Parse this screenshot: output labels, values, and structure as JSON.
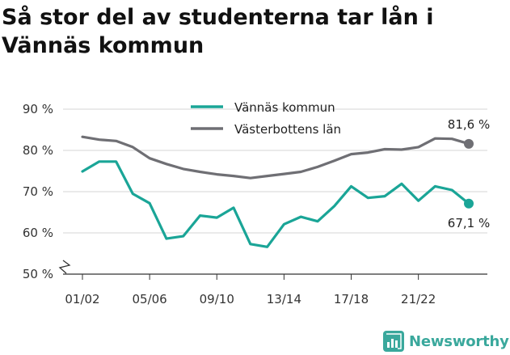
{
  "chart_data": {
    "type": "line",
    "title": "Så stor del av studenterna tar lån i Vännäs kommun",
    "xlabel": "",
    "ylabel": "",
    "ylim": [
      50,
      90
    ],
    "yticks": [
      50,
      60,
      70,
      80,
      90
    ],
    "ytick_labels": [
      "50 %",
      "60 %",
      "70 %",
      "80 %",
      "90 %"
    ],
    "y_axis_break": true,
    "x": [
      "01/02",
      "02/03",
      "03/04",
      "04/05",
      "05/06",
      "06/07",
      "07/08",
      "08/09",
      "09/10",
      "10/11",
      "11/12",
      "12/13",
      "13/14",
      "14/15",
      "15/16",
      "16/17",
      "17/18",
      "18/19",
      "19/20",
      "20/21",
      "21/22",
      "22/23",
      "23/24",
      "24/25"
    ],
    "xtick_labels": [
      "01/02",
      "05/06",
      "09/10",
      "13/14",
      "17/18",
      "21/22"
    ],
    "grid": "horizontal",
    "legend": "top-center",
    "series": [
      {
        "name": "Vännäs kommun",
        "color": "#1aa597",
        "values": [
          74.9,
          77.3,
          77.3,
          69.5,
          67.2,
          58.6,
          59.2,
          64.2,
          63.7,
          66.1,
          57.3,
          56.6,
          62.1,
          63.9,
          62.8,
          66.5,
          71.3,
          68.5,
          68.9,
          71.9,
          67.8,
          71.3,
          70.4,
          67.1
        ],
        "end_label": "67,1 %"
      },
      {
        "name": "Västerbottens län",
        "color": "#6f6f74",
        "values": [
          83.3,
          82.6,
          82.3,
          80.8,
          78.1,
          76.7,
          75.5,
          74.8,
          74.2,
          73.8,
          73.3,
          73.8,
          74.3,
          74.8,
          76.0,
          77.5,
          79.1,
          79.5,
          80.3,
          80.2,
          80.8,
          82.9,
          82.8,
          81.6
        ],
        "end_label": "81,6 %"
      }
    ]
  },
  "branding": {
    "name": "Newsworthy",
    "icon": "newsworthy-logo-icon",
    "color": "#3aa89c"
  }
}
